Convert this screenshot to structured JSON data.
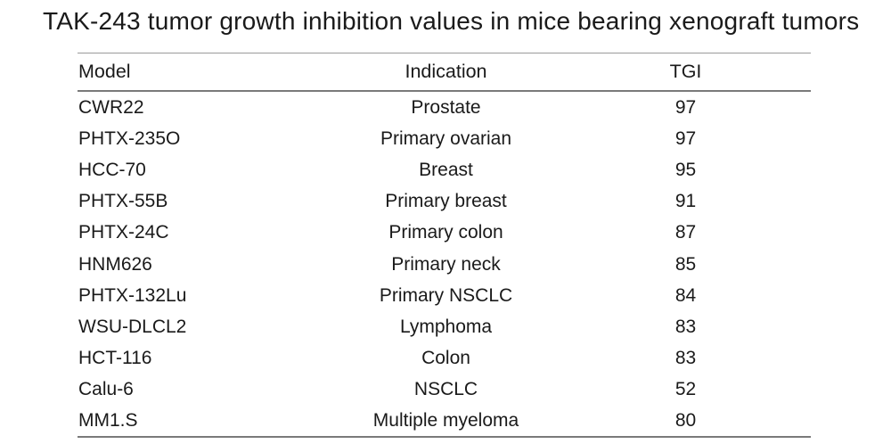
{
  "title": "TAK-243 tumor growth inhibition values in mice bearing xenograft tumors",
  "table": {
    "columns": [
      "Model",
      "Indication",
      "TGI"
    ],
    "rows": [
      {
        "model": "CWR22",
        "indication": "Prostate",
        "tgi": "97"
      },
      {
        "model": "PHTX-235O",
        "indication": "Primary ovarian",
        "tgi": "97"
      },
      {
        "model": "HCC-70",
        "indication": "Breast",
        "tgi": "95"
      },
      {
        "model": "PHTX-55B",
        "indication": "Primary breast",
        "tgi": "91"
      },
      {
        "model": "PHTX-24C",
        "indication": "Primary colon",
        "tgi": "87"
      },
      {
        "model": "HNM626",
        "indication": "Primary neck",
        "tgi": "85"
      },
      {
        "model": "PHTX-132Lu",
        "indication": "Primary NSCLC",
        "tgi": "84"
      },
      {
        "model": "WSU-DLCL2",
        "indication": "Lymphoma",
        "tgi": "83"
      },
      {
        "model": "HCT-116",
        "indication": "Colon",
        "tgi": "83"
      },
      {
        "model": "Calu-6",
        "indication": "NSCLC",
        "tgi": "52"
      },
      {
        "model": "MM1.S",
        "indication": "Multiple myeloma",
        "tgi": "80"
      }
    ]
  },
  "chart_data": {
    "type": "table",
    "title": "TAK-243 tumor growth inhibition values in mice bearing xenograft tumors",
    "columns": [
      "Model",
      "Indication",
      "TGI"
    ],
    "rows": [
      [
        "CWR22",
        "Prostate",
        97
      ],
      [
        "PHTX-235O",
        "Primary ovarian",
        97
      ],
      [
        "HCC-70",
        "Breast",
        95
      ],
      [
        "PHTX-55B",
        "Primary breast",
        91
      ],
      [
        "PHTX-24C",
        "Primary colon",
        87
      ],
      [
        "HNM626",
        "Primary neck",
        85
      ],
      [
        "PHTX-132Lu",
        "Primary NSCLC",
        84
      ],
      [
        "WSU-DLCL2",
        "Lymphoma",
        83
      ],
      [
        "HCT-116",
        "Colon",
        83
      ],
      [
        "Calu-6",
        "NSCLC",
        52
      ],
      [
        "MM1.S",
        "Multiple myeloma",
        80
      ]
    ]
  },
  "colors": {
    "background": "#ffffff",
    "text": "#1a1a1a",
    "rule_thin": "#9a9a9a",
    "rule_thick": "#7a7a7a"
  }
}
